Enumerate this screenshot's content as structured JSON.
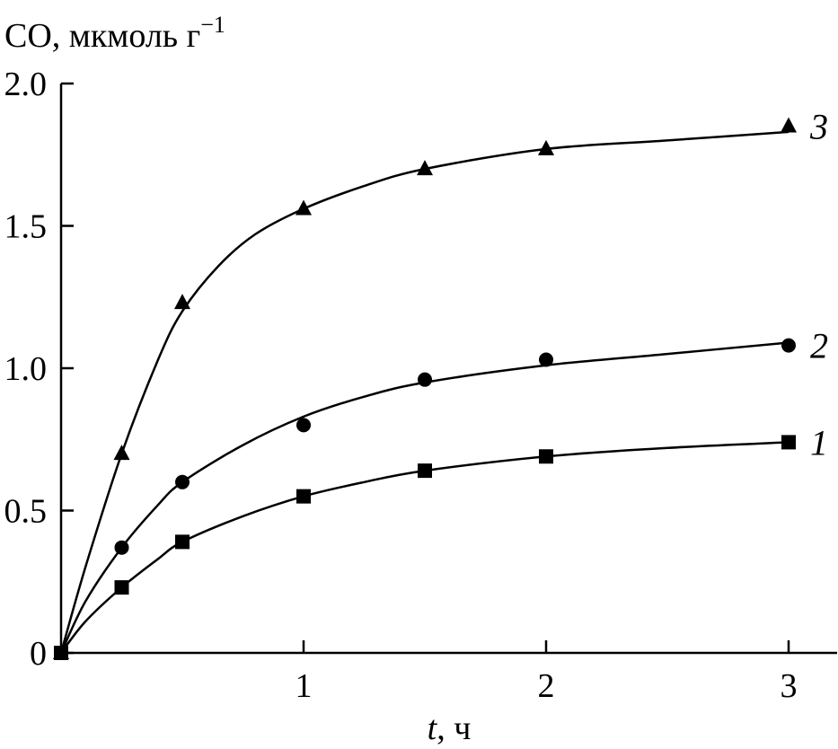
{
  "chart_data": {
    "type": "line",
    "ylabel": "CO, мкмоль г",
    "ylabel_sup": "−1",
    "xlabel_var": "t",
    "xlabel_unit": ", ч",
    "xlim": [
      0,
      3.2
    ],
    "ylim": [
      0,
      2.0
    ],
    "grid": false,
    "x_ticks": [
      {
        "value": 1,
        "label": "1"
      },
      {
        "value": 2,
        "label": "2"
      },
      {
        "value": 3,
        "label": "3"
      }
    ],
    "y_ticks": [
      {
        "value": 0,
        "label": "0"
      },
      {
        "value": 0.5,
        "label": "0.5"
      },
      {
        "value": 1.0,
        "label": "1.0"
      },
      {
        "value": 1.5,
        "label": "1.5"
      },
      {
        "value": 2.0,
        "label": "2.0"
      }
    ],
    "series": [
      {
        "name": "1",
        "marker": "square",
        "x": [
          0,
          0.25,
          0.5,
          1,
          1.5,
          2,
          3
        ],
        "y": [
          0,
          0.23,
          0.39,
          0.55,
          0.64,
          0.69,
          0.74
        ],
        "fit": [
          [
            0,
            0
          ],
          [
            0.1,
            0.11
          ],
          [
            0.25,
            0.23
          ],
          [
            0.4,
            0.33
          ],
          [
            0.5,
            0.39
          ],
          [
            0.75,
            0.48
          ],
          [
            1,
            0.55
          ],
          [
            1.25,
            0.6
          ],
          [
            1.5,
            0.64
          ],
          [
            2,
            0.69
          ],
          [
            2.5,
            0.72
          ],
          [
            3,
            0.74
          ]
        ]
      },
      {
        "name": "2",
        "marker": "circle",
        "x": [
          0,
          0.25,
          0.5,
          1,
          1.5,
          2,
          3
        ],
        "y": [
          0,
          0.37,
          0.6,
          0.8,
          0.96,
          1.03,
          1.08
        ],
        "fit": [
          [
            0,
            0
          ],
          [
            0.1,
            0.18
          ],
          [
            0.25,
            0.37
          ],
          [
            0.4,
            0.52
          ],
          [
            0.5,
            0.6
          ],
          [
            0.75,
            0.73
          ],
          [
            1,
            0.83
          ],
          [
            1.25,
            0.9
          ],
          [
            1.5,
            0.95
          ],
          [
            2,
            1.01
          ],
          [
            2.5,
            1.05
          ],
          [
            3,
            1.09
          ]
        ]
      },
      {
        "name": "3",
        "marker": "triangle",
        "x": [
          0,
          0.25,
          0.5,
          1,
          1.5,
          2,
          3
        ],
        "y": [
          0,
          0.7,
          1.23,
          1.56,
          1.7,
          1.77,
          1.85
        ],
        "fit": [
          [
            0,
            0
          ],
          [
            0.1,
            0.3
          ],
          [
            0.25,
            0.7
          ],
          [
            0.4,
            1.03
          ],
          [
            0.5,
            1.2
          ],
          [
            0.65,
            1.36
          ],
          [
            0.8,
            1.47
          ],
          [
            1,
            1.56
          ],
          [
            1.25,
            1.64
          ],
          [
            1.5,
            1.7
          ],
          [
            2,
            1.77
          ],
          [
            2.5,
            1.8
          ],
          [
            3,
            1.83
          ]
        ]
      }
    ]
  }
}
